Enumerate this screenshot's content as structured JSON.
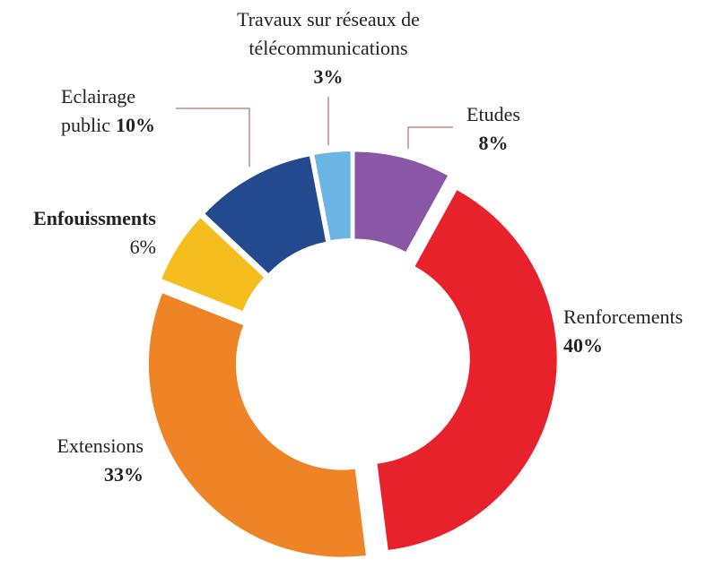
{
  "chart_data": {
    "type": "pie",
    "categories": [
      "Etudes",
      "Renforcements",
      "Extensions",
      "Enfouissments",
      "Eclairage public",
      "Travaux sur réseaux de télécommunications"
    ],
    "values": [
      8,
      40,
      33,
      6,
      10,
      3
    ],
    "value_labels": [
      "8%",
      "40%",
      "33%",
      "6%",
      "10%",
      "3%"
    ],
    "colors": [
      "#8a56a6",
      "#e8222a",
      "#ee8426",
      "#f5bd1e",
      "#234a8e",
      "#6bb5e5"
    ]
  }
}
